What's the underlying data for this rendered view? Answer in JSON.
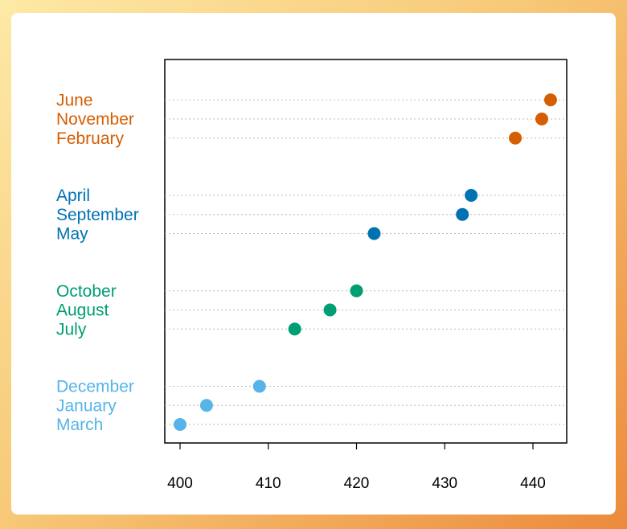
{
  "chart_data": {
    "type": "scatter",
    "subtype": "dotchart",
    "title": "",
    "xlabel": "",
    "ylabel": "",
    "xlim": [
      398,
      443
    ],
    "xticks": [
      400,
      410,
      420,
      430,
      440
    ],
    "grid": "dotted horizontal",
    "groups": [
      {
        "color": "#D55E00",
        "items": [
          {
            "label": "June",
            "value": 442
          },
          {
            "label": "November",
            "value": 441
          },
          {
            "label": "February",
            "value": 438
          }
        ]
      },
      {
        "color": "#0072B2",
        "items": [
          {
            "label": "April",
            "value": 433
          },
          {
            "label": "September",
            "value": 432
          },
          {
            "label": "May",
            "value": 422
          }
        ]
      },
      {
        "color": "#009E73",
        "items": [
          {
            "label": "October",
            "value": 420
          },
          {
            "label": "August",
            "value": 417
          },
          {
            "label": "July",
            "value": 413
          }
        ]
      },
      {
        "color": "#56B4E9",
        "items": [
          {
            "label": "December",
            "value": 409
          },
          {
            "label": "January",
            "value": 403
          },
          {
            "label": "March",
            "value": 400
          }
        ]
      }
    ]
  }
}
